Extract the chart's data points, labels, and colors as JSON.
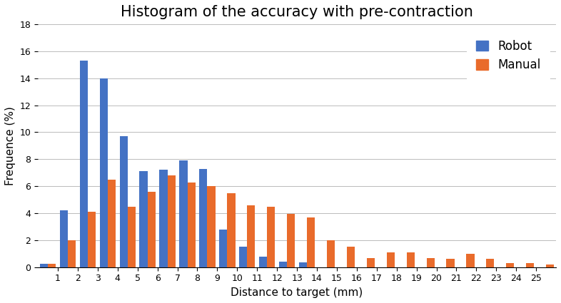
{
  "title": "Histogram of the accuracy with pre-contraction",
  "xlabel": "Distance to target (mm)",
  "ylabel": "Frequence (%)",
  "robot": [
    0.25,
    4.2,
    15.3,
    14.0,
    9.7,
    7.1,
    7.2,
    7.9,
    7.3,
    2.8,
    1.5,
    0.8,
    0.4,
    0.35,
    0.0,
    0.0,
    0.0,
    0.0,
    0.0,
    0.0,
    0.0,
    0.0,
    0.0,
    0.0,
    0.0,
    0.0
  ],
  "manual": [
    0.25,
    2.0,
    4.1,
    6.5,
    4.5,
    5.6,
    6.8,
    6.3,
    6.0,
    5.5,
    4.6,
    4.5,
    3.95,
    3.7,
    2.0,
    1.5,
    0.65,
    1.1,
    1.1,
    0.65,
    0.6,
    1.0,
    0.6,
    0.3,
    0.3,
    0.2
  ],
  "robot_color": "#4472C4",
  "manual_color": "#E96B2B",
  "ylim": [
    0,
    18
  ],
  "yticks": [
    0,
    2,
    4,
    6,
    8,
    10,
    12,
    14,
    16,
    18
  ],
  "xtick_labels": [
    "1",
    "2",
    "3",
    "4",
    "5",
    "6",
    "7",
    "8",
    "9",
    "10",
    "11",
    "12",
    "13",
    "14",
    "15",
    "16",
    "17",
    "18",
    "19",
    "20",
    "21",
    "22",
    "23",
    "24",
    "25"
  ],
  "title_fontsize": 15,
  "axis_label_fontsize": 11,
  "tick_fontsize": 9,
  "legend_fontsize": 12,
  "bar_width": 0.4,
  "background_color": "#FFFFFF",
  "grid_color": "#BBBBBB"
}
